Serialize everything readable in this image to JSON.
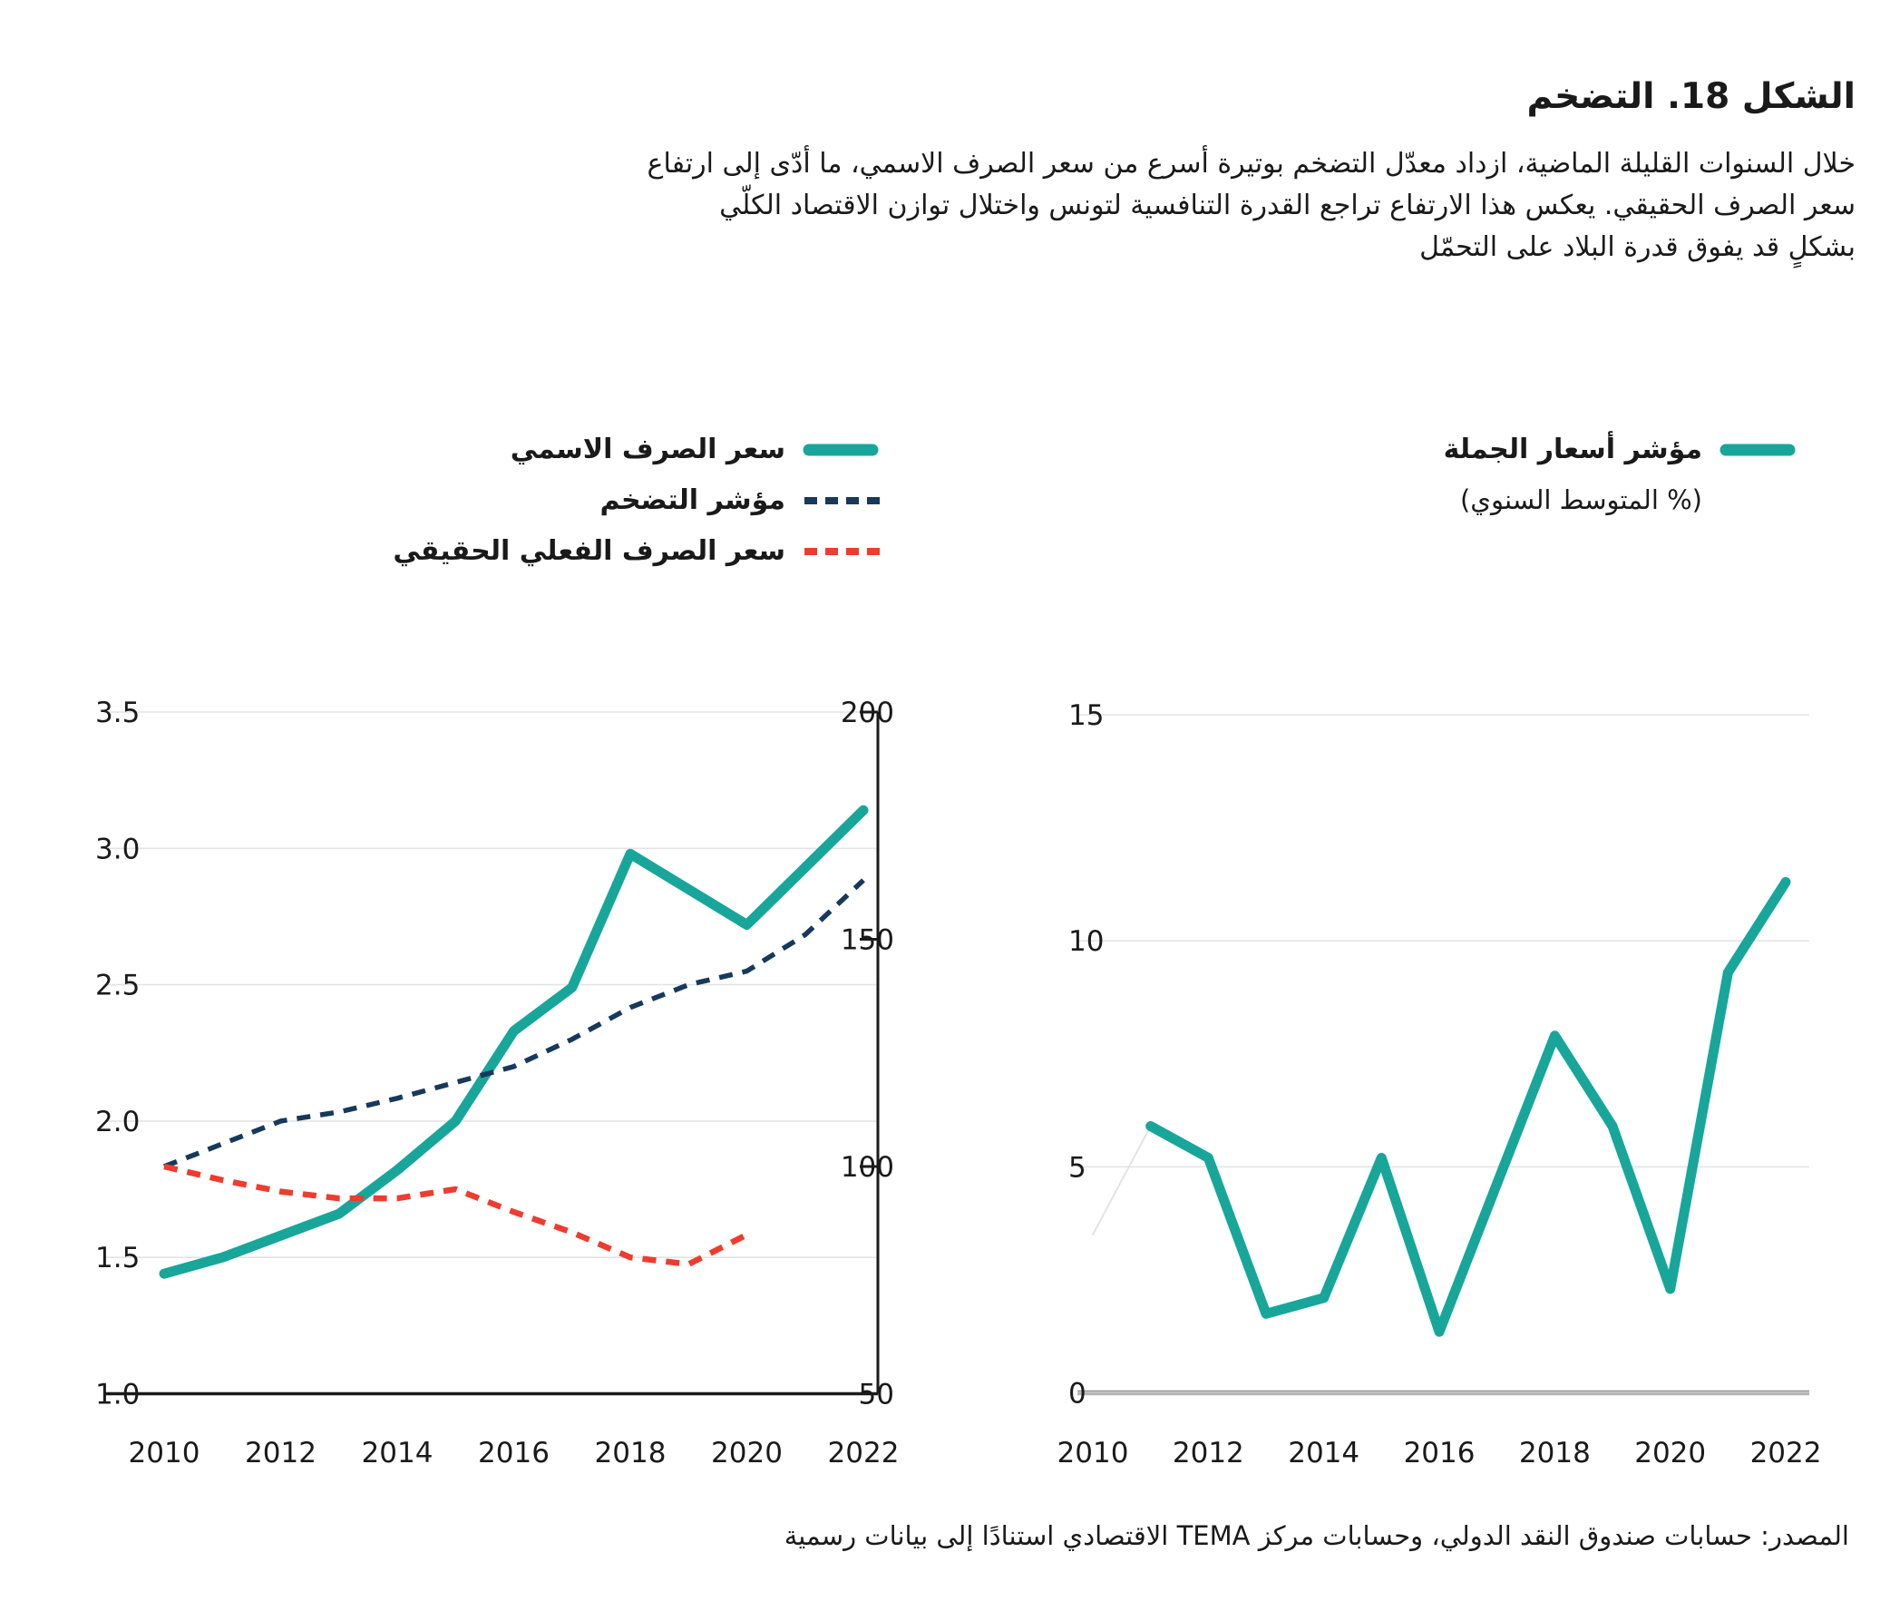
{
  "title": "الشكل 18. التضخم",
  "intro": {
    "line1": "خلال السنوات القليلة الماضية، ازداد معدّل التضخم بوتيرة أسرع من سعر الصرف الاسمي، ما أدّى إلى ارتفاع",
    "line2": "سعر الصرف الحقيقي. يعكس هذا الارتفاع تراجع القدرة التنافسية لتونس واختلال توازن الاقتصاد الكلّي",
    "line3": "بشكلٍ قد يفوق قدرة البلاد على التحمّل"
  },
  "colors": {
    "teal": "#18a69b",
    "navy": "#17395c",
    "red": "#ee3c2f",
    "grid": "#e4e4e4",
    "axis_dark": "#1a1a1a",
    "axis_gray": "#b5b5b5",
    "faint": "#e3e3e3",
    "text": "#1a1a1a"
  },
  "legend_left": {
    "items": [
      {
        "label": "سعر الصرف الاسمي",
        "style": "solid",
        "color_key": "teal"
      },
      {
        "label": "مؤشر التضخم",
        "style": "dashed",
        "color_key": "navy"
      },
      {
        "label": "سعر الصرف الفعلي الحقيقي",
        "style": "dashed",
        "color_key": "red"
      }
    ]
  },
  "legend_right": {
    "label": "مؤشر أسعار الجملة",
    "subtitle": "(% المتوسط السنوي)",
    "style": "solid",
    "color_key": "teal"
  },
  "source": "المصدر: حسابات صندوق النقد الدولي،  وحسابات مركز TEMA الاقتصادي استنادًا إلى بيانات رسمية",
  "chart_data": [
    {
      "type": "line",
      "name": "exchange-rate-and-inflation",
      "x": [
        2010,
        2011,
        2012,
        2013,
        2014,
        2015,
        2016,
        2017,
        2018,
        2019,
        2020,
        2021,
        2022
      ],
      "x_tick_labels": [
        "2010",
        "2012",
        "2014",
        "2016",
        "2018",
        "2020",
        "2022"
      ],
      "x_tick_years": [
        2010,
        2012,
        2014,
        2016,
        2018,
        2020,
        2022
      ],
      "y_left": {
        "range": [
          1.0,
          3.5
        ],
        "ticks": [
          3.5,
          3.0,
          2.5,
          2.0,
          1.5,
          1.0
        ],
        "grid": true
      },
      "y_right": {
        "range": [
          50,
          200
        ],
        "ticks": [
          200,
          150,
          100,
          50
        ]
      },
      "legend_position": "top-right-of-plot",
      "series": [
        {
          "name": "سعر الصرف الاسمي",
          "id": "nominal-exchange-rate",
          "axis": "left",
          "style": "solid",
          "color_key": "teal",
          "width": 11,
          "values": [
            1.44,
            1.5,
            1.58,
            1.66,
            1.82,
            2.0,
            2.33,
            2.49,
            2.98,
            2.85,
            2.72,
            2.93,
            3.14
          ]
        },
        {
          "name": "مؤشر التضخم",
          "id": "inflation-index",
          "axis": "right",
          "style": "dashed",
          "color_key": "navy",
          "width": 5.5,
          "values": [
            100,
            105,
            110,
            112,
            115,
            118.5,
            122,
            128,
            135,
            140,
            143,
            151,
            163
          ]
        },
        {
          "name": "سعر الصرف الفعلي الحقيقي",
          "id": "real-effective-exchange-rate",
          "axis": "right",
          "style": "dashed",
          "color_key": "red",
          "width": 6.5,
          "values": [
            100,
            97,
            94.5,
            93,
            93,
            95,
            90,
            85.5,
            80,
            78.5,
            85,
            null,
            null
          ]
        }
      ]
    },
    {
      "type": "line",
      "name": "wholesale-price-index",
      "x": [
        2010,
        2011,
        2012,
        2013,
        2014,
        2015,
        2016,
        2017,
        2018,
        2019,
        2020,
        2021,
        2022
      ],
      "x_tick_labels": [
        "2010",
        "2012",
        "2014",
        "2016",
        "2018",
        "2020",
        "2022"
      ],
      "x_tick_years": [
        2010,
        2012,
        2014,
        2016,
        2018,
        2020,
        2022
      ],
      "y": {
        "range": [
          0,
          15
        ],
        "ticks": [
          15,
          10,
          5,
          0
        ],
        "grid": true
      },
      "series": [
        {
          "name": "faint-lead-in",
          "id": "faint-lead-in-segment",
          "style": "solid",
          "color_key": "faint",
          "width": 2,
          "values": [
            3.5,
            5.9,
            null,
            null,
            null,
            null,
            null,
            null,
            null,
            null,
            null,
            null,
            null
          ]
        },
        {
          "name": "مؤشر أسعار الجملة",
          "id": "wholesale-price-index-line",
          "style": "solid",
          "color_key": "teal",
          "width": 11,
          "values": [
            null,
            5.9,
            5.2,
            1.75,
            2.1,
            5.2,
            1.35,
            4.63,
            7.9,
            5.9,
            2.3,
            9.3,
            11.3
          ]
        }
      ]
    }
  ]
}
